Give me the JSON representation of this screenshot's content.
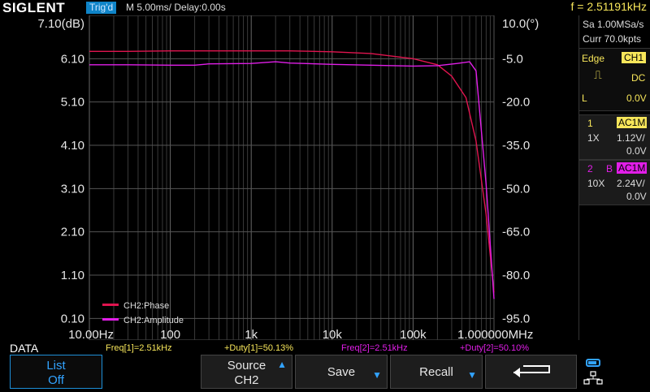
{
  "header": {
    "brand": "SIGLENT",
    "trigger_status": "Trig'd",
    "timebase": "M 5.00ms/ Delay:0.00s",
    "frequency": "f = 2.51191kHz"
  },
  "side_panel": {
    "sample_rate": "Sa 1.00MSa/s",
    "memory_depth": "Curr 70.0kpts",
    "trigger": {
      "type_label": "Edge",
      "source": "CH1",
      "coupling": "DC",
      "level_label": "L",
      "level": "0.0V"
    },
    "ch1": {
      "number": "1",
      "coupling": "AC1M",
      "probe": "1X",
      "scale": "1.12V/",
      "offset": "0.0V"
    },
    "ch2": {
      "number": "2",
      "bw": "B",
      "coupling": "AC1M",
      "probe": "10X",
      "scale": "2.24V/",
      "offset": "0.0V"
    }
  },
  "chart_data": {
    "type": "line",
    "x_scale": "log",
    "x_ticks": [
      "10.00Hz",
      "100",
      "1k",
      "10k",
      "100k",
      "1.000000MHz"
    ],
    "left_axis_label": "7.10(dB)",
    "left_ticks": [
      "6.10",
      "5.10",
      "4.10",
      "3.10",
      "2.10",
      "1.10",
      "0.10"
    ],
    "right_axis_label": "10.0(°)",
    "right_ticks": [
      "-5.0",
      "-20.0",
      "-35.0",
      "-50.0",
      "-65.0",
      "-80.0",
      "-95.0"
    ],
    "grid": true,
    "legend_position": "bottom-left",
    "series": [
      {
        "name": "CH2:Phase",
        "color": "#e0144f",
        "x": [
          10,
          30,
          100,
          300,
          1000,
          3000,
          10000,
          30000,
          100000,
          200000,
          300000,
          450000,
          600000,
          800000,
          1000000
        ],
        "y": [
          6.27,
          6.27,
          6.28,
          6.28,
          6.28,
          6.28,
          6.26,
          6.22,
          6.1,
          5.96,
          5.7,
          5.2,
          4.2,
          2.5,
          0.7
        ]
      },
      {
        "name": "CH2:Amplitude",
        "color": "#e11ee8",
        "x": [
          10,
          30,
          100,
          200,
          300,
          1000,
          2000,
          3000,
          10000,
          30000,
          100000,
          200000,
          350000,
          500000,
          600000,
          800000,
          1000000
        ],
        "y": [
          5.96,
          5.96,
          5.95,
          5.95,
          5.98,
          5.99,
          6.03,
          6.0,
          5.97,
          5.95,
          5.93,
          5.94,
          5.99,
          6.03,
          5.82,
          3.2,
          0.55
        ]
      }
    ]
  },
  "measurements": {
    "data_label": "DATA",
    "freq1": "Freq[1]=2.51kHz",
    "duty1": "+Duty[1]=50.13%",
    "freq2": "Freq[2]=2.51kHz",
    "duty2": "+Duty[2]=50.10%"
  },
  "softkeys": {
    "list_line1": "List",
    "list_line2": "Off",
    "source_line1": "Source",
    "source_line2": "CH2",
    "save": "Save",
    "recall": "Recall",
    "return_icon": "return-arrow-icon"
  },
  "colors": {
    "ch1": "#f7e65a",
    "ch2": "#e11ee8",
    "phase": "#e0144f",
    "accent": "#32a3ff"
  }
}
